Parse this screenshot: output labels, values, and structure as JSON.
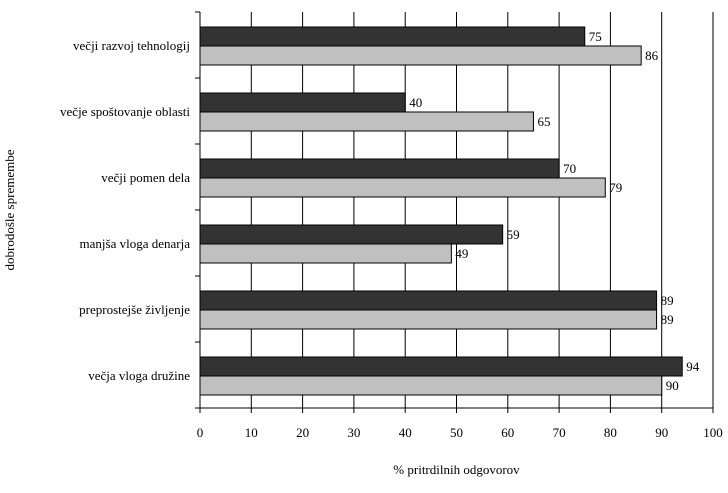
{
  "chart_data": {
    "type": "bar",
    "orientation": "horizontal",
    "categories": [
      "večji razvoj tehnologij",
      "večje spoštovanje oblasti",
      "večji pomen dela",
      "manjša vloga denarja",
      "preprostejše življenje",
      "večja vloga družine"
    ],
    "series": [
      {
        "values": [
          75,
          40,
          70,
          59,
          89,
          94
        ],
        "color": "#333333"
      },
      {
        "values": [
          86,
          65,
          79,
          49,
          89,
          90
        ],
        "color": "#c0c0c0"
      }
    ],
    "xlabel": "% pritrdilnih odgovorov",
    "ylabel": "dobrodošle spremembe",
    "xlim": [
      0,
      100
    ],
    "xticks": [
      0,
      10,
      20,
      30,
      40,
      50,
      60,
      70,
      80,
      90,
      100
    ],
    "grid": "vertical",
    "legend": "none"
  }
}
